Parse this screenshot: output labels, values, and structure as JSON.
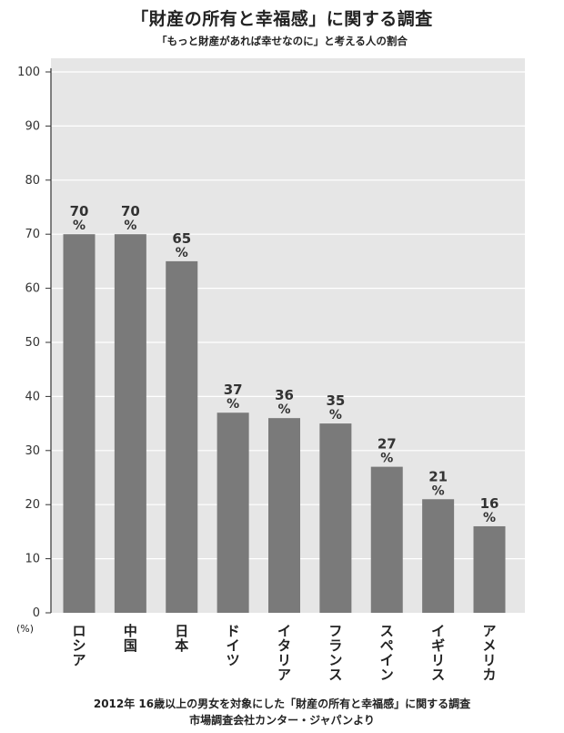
{
  "chart_data": {
    "type": "bar",
    "title": "「財産の所有と幸福感」に関する調査",
    "subtitle": "「もっと財産があれば幸せなのに」と考える人の割合",
    "unit_label": "(%)",
    "value_suffix": "%",
    "categories": [
      "ロシア",
      "中国",
      "日本",
      "ドイツ",
      "イタリア",
      "フランス",
      "スペイン",
      "イギリス",
      "アメリカ"
    ],
    "values": [
      70,
      70,
      65,
      37,
      36,
      35,
      27,
      21,
      16
    ],
    "ylim": [
      0,
      100
    ],
    "yticks": [
      0,
      10,
      20,
      30,
      40,
      50,
      60,
      70,
      80,
      90,
      100
    ],
    "grid": true,
    "colors": {
      "bar": "#7a7a7a",
      "plot_bg": "#e6e6e6",
      "grid": "#ffffff",
      "axis": "#333333"
    }
  },
  "footnotes": [
    "2012年 16歳以上の男女を対象にした「財産の所有と幸福感」に関する調査",
    "市場調査会社カンター・ジャパンより"
  ]
}
